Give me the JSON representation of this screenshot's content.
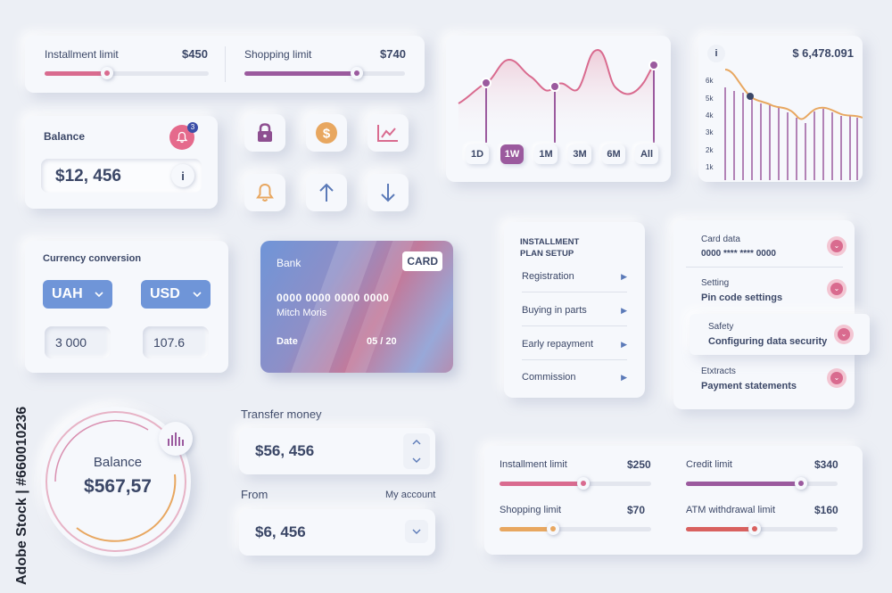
{
  "limits_top": {
    "installment_label": "Installment limit",
    "installment_value": "$450",
    "installment_fraction": 0.38,
    "shopping_label": "Shopping limit",
    "shopping_value": "$740",
    "shopping_fraction": 0.7,
    "colors": {
      "installment": "#d96b8f",
      "shopping": "#9b5a9e"
    }
  },
  "balance_card": {
    "title": "Balance",
    "amount": "$12, 456",
    "notification_count": "3",
    "info_icon": "i"
  },
  "icons": [
    "lock-icon",
    "dollar-coin-icon",
    "chart-icon",
    "bell-icon",
    "arrow-up-icon",
    "arrow-down-icon"
  ],
  "line_chart": {
    "periods": [
      "1D",
      "1W",
      "1M",
      "3M",
      "6M",
      "All"
    ],
    "active_period": "1W"
  },
  "bar_chart": {
    "info_icon": "i",
    "amount": "$ 6,478.091",
    "y_ticks": [
      "6k",
      "5k",
      "4k",
      "3k",
      "2k",
      "1k"
    ]
  },
  "currency": {
    "title": "Currency conversion",
    "from_currency": "UAH",
    "to_currency": "USD",
    "from_amount": "3 000",
    "to_amount": "107.6"
  },
  "bank_card": {
    "bank_label": "Bank",
    "card_badge": "CARD",
    "number": "0000 0000 0000 0000",
    "holder": "Mitch Moris",
    "date_label": "Date",
    "date_value": "05 / 20"
  },
  "installment_menu": {
    "title_line1": "INSTALLMENT",
    "title_line2": "PLAN SETUP",
    "items": [
      "Registration",
      "Buying in parts",
      "Early repayment",
      "Commission"
    ]
  },
  "settings_list": {
    "items": [
      {
        "label": "Card data",
        "value": "0000 **** **** 0000"
      },
      {
        "label": "Setting",
        "value": "Pin code settings"
      },
      {
        "label": "Safety",
        "value": "Configuring data security"
      },
      {
        "label": "Etxtracts",
        "value": "Payment statements"
      }
    ]
  },
  "balance_circle": {
    "title": "Balance",
    "amount": "$567,57"
  },
  "transfer": {
    "title": "Transfer money",
    "amount": "$56, 456",
    "from_label": "From",
    "account_label": "My account",
    "from_amount": "$6, 456"
  },
  "limits_bottom": {
    "installment_label": "Installment limit",
    "installment_value": "$250",
    "installment_fraction": 0.55,
    "credit_label": "Credit limit",
    "credit_value": "$340",
    "credit_fraction": 0.76,
    "shopping_label": "Shopping limit",
    "shopping_value": "$70",
    "shopping_fraction": 0.35,
    "atm_label": "ATM withdrawal limit",
    "atm_value": "$160",
    "atm_fraction": 0.45,
    "colors": {
      "installment": "#d96b8f",
      "credit": "#9b5a9e",
      "shopping": "#e8a760",
      "atm": "#d9615f"
    }
  },
  "watermark": {
    "text": "Adobe Stock | #660010236"
  }
}
